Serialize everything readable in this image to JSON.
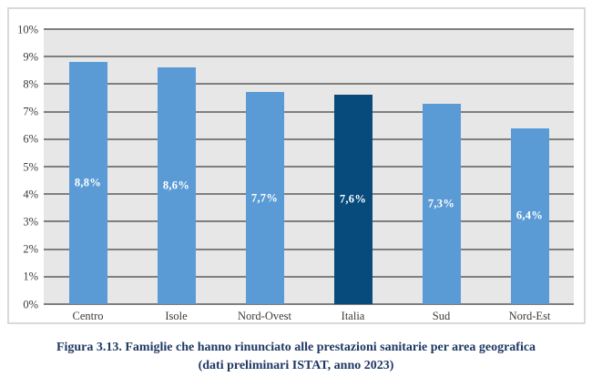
{
  "chart_data": {
    "type": "bar",
    "title": "",
    "xlabel": "",
    "ylabel": "",
    "categories": [
      "Centro",
      "Isole",
      "Nord-Ovest",
      "Italia",
      "Sud",
      "Nord-Est"
    ],
    "values": [
      8.8,
      8.6,
      7.7,
      7.6,
      7.3,
      6.4
    ],
    "value_labels": [
      "8,8%",
      "8,6%",
      "7,7%",
      "7,6%",
      "7,3%",
      "6,4%"
    ],
    "highlight_category": "Italia",
    "ylim": [
      0,
      10
    ],
    "ytick_step": 1,
    "yticks": [
      "0%",
      "1%",
      "2%",
      "3%",
      "4%",
      "5%",
      "6%",
      "7%",
      "8%",
      "9%",
      "10%"
    ],
    "grid": true,
    "legend": false,
    "colors": {
      "bar": "#5B9BD5",
      "highlight_bar": "#074A7C",
      "bar_value_label": "#FFFFFF",
      "plot_background": "#E7E7E7",
      "gridline": "#7F7F7F",
      "axis_text": "#3B3B3B",
      "chart_border": "#D9D9D9"
    }
  },
  "caption": {
    "line1": "Figura 3.13. Famiglie che hanno rinunciato alle prestazioni sanitarie per area geografica",
    "line2": "(dati preliminari ISTAT, anno 2023)",
    "color": "#1F3864"
  }
}
